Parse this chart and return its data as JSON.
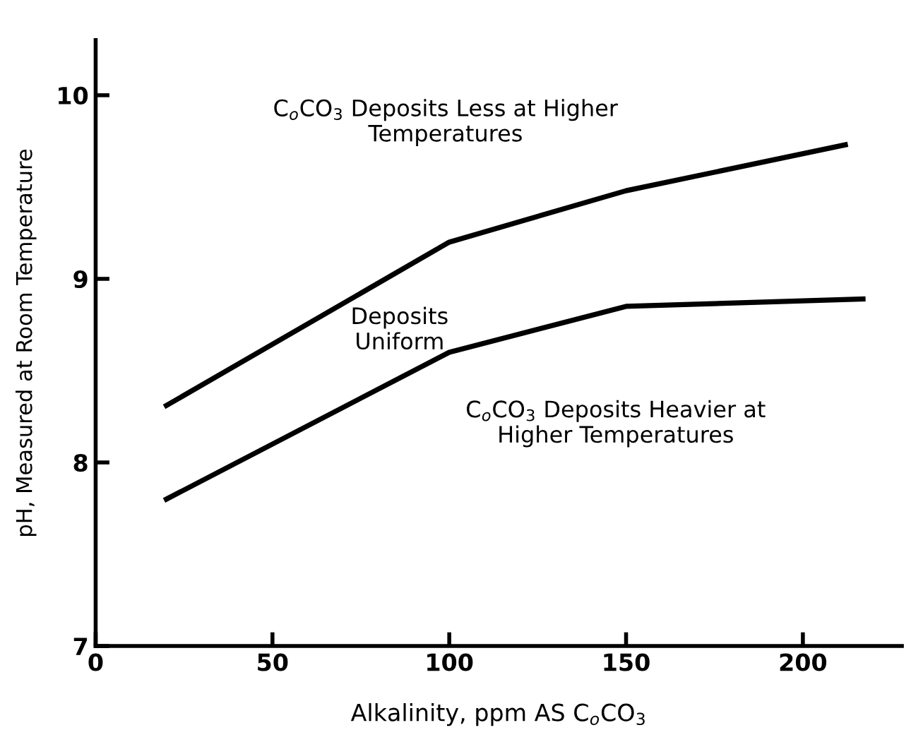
{
  "chart_data": {
    "type": "line",
    "xlabel": "Alkalinity, ppm AS C$_{o}$CO$_{3}$",
    "ylabel": "pH, Measured at Room Temperature",
    "series": [
      {
        "color": "#000000",
        "x": [
          20,
          100,
          150,
          212
        ],
        "values": [
          8.31,
          9.2,
          9.48,
          9.73
        ]
      },
      {
        "color": "#000000",
        "x": [
          20,
          100,
          150,
          217
        ],
        "values": [
          7.8,
          8.6,
          8.85,
          8.89
        ]
      }
    ],
    "xlim": [
      0,
      228
    ],
    "ylim": [
      7,
      10.3
    ],
    "xticks": [
      0,
      50,
      100,
      150,
      200
    ],
    "yticks": [
      7,
      8,
      9,
      10
    ],
    "annotations": [
      "C$_{o}$CO$_{3}$ Deposits Less at Higher\nTemperatures",
      "Deposits\nUniform",
      "C$_{o}$CO$_{3}$ Deposits Heavier at\nHigher Temperatures"
    ],
    "grid": false,
    "legend": false,
    "marker": "none",
    "line_style": "solid"
  }
}
